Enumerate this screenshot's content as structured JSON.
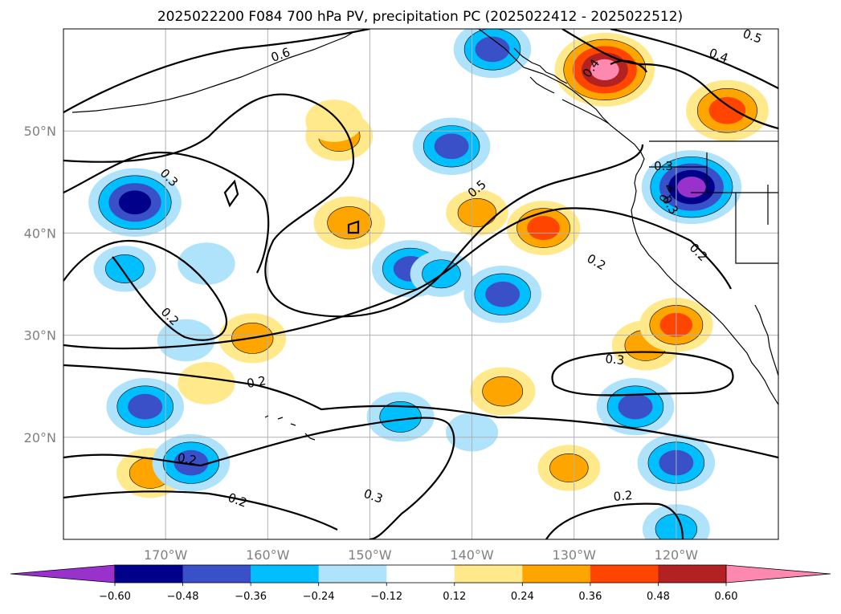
{
  "chart_data": {
    "type": "heatmap",
    "title": "2025022200 F084 700 hPa PV, precipitation PC (2025022412 - 2025022512)",
    "map": {
      "lon_range": [
        -180,
        -110
      ],
      "lat_range": [
        10,
        60
      ],
      "lon_ticks": [
        {
          "value": -170,
          "label": "170°W"
        },
        {
          "value": -160,
          "label": "160°W"
        },
        {
          "value": -150,
          "label": "150°W"
        },
        {
          "value": -140,
          "label": "140°W"
        },
        {
          "value": -130,
          "label": "130°W"
        },
        {
          "value": -120,
          "label": "120°W"
        }
      ],
      "lat_ticks": [
        {
          "value": 50,
          "label": "50°N"
        },
        {
          "value": 40,
          "label": "40°N"
        },
        {
          "value": 30,
          "label": "30°N"
        },
        {
          "value": 20,
          "label": "20°N"
        }
      ],
      "grid": true
    },
    "colorbar": {
      "orientation": "horizontal",
      "extend": "both",
      "levels": [
        -0.6,
        -0.48,
        -0.36,
        -0.24,
        -0.12,
        0.12,
        0.24,
        0.36,
        0.48,
        0.6
      ],
      "tick_labels": [
        "−0.60",
        "−0.48",
        "−0.36",
        "−0.24",
        "−0.12",
        "0.12",
        "0.24",
        "0.36",
        "0.48",
        "0.60"
      ],
      "colors": [
        "#9932cc",
        "#00008b",
        "#3a50c8",
        "#00bfff",
        "#aee3fb",
        "#ffffff",
        "#ffe98a",
        "#ffa500",
        "#ff4500",
        "#b22222",
        "#ff88b0"
      ]
    },
    "precipitation_pc_areas": [
      {
        "lon": -173,
        "lat": 43,
        "peak": -0.55
      },
      {
        "lon": -172,
        "lat": 23,
        "peak": -0.4
      },
      {
        "lon": -168,
        "lat": 29.5,
        "peak": -0.2
      },
      {
        "lon": -174,
        "lat": 36.5,
        "peak": -0.25
      },
      {
        "lon": -166,
        "lat": 37,
        "peak": -0.2
      },
      {
        "lon": -152,
        "lat": 41,
        "peak": 0.34
      },
      {
        "lon": -153,
        "lat": 49.5,
        "peak": 0.3
      },
      {
        "lon": -161.5,
        "lat": 29.7,
        "peak": 0.3
      },
      {
        "lon": -146,
        "lat": 36.5,
        "peak": -0.4
      },
      {
        "lon": -143,
        "lat": 36,
        "peak": -0.25
      },
      {
        "lon": -142,
        "lat": 48.5,
        "peak": -0.4
      },
      {
        "lon": -137,
        "lat": 34,
        "peak": -0.4
      },
      {
        "lon": -139.5,
        "lat": 42,
        "peak": 0.25
      },
      {
        "lon": -133,
        "lat": 40.5,
        "peak": 0.36
      },
      {
        "lon": -138,
        "lat": 58,
        "peak": -0.4
      },
      {
        "lon": -127,
        "lat": 56,
        "peak": 0.62
      },
      {
        "lon": -115,
        "lat": 52,
        "peak": 0.45
      },
      {
        "lon": -118.5,
        "lat": 44.5,
        "peak": -0.62
      },
      {
        "lon": -123,
        "lat": 29,
        "peak": 0.3
      },
      {
        "lon": -120,
        "lat": 31,
        "peak": 0.36
      },
      {
        "lon": -124,
        "lat": 23,
        "peak": -0.4
      },
      {
        "lon": -120,
        "lat": 17.5,
        "peak": -0.4
      },
      {
        "lon": -147,
        "lat": 22,
        "peak": -0.3
      },
      {
        "lon": -171.5,
        "lat": 16.5,
        "peak": 0.3
      },
      {
        "lon": -167.5,
        "lat": 17.5,
        "peak": -0.4
      },
      {
        "lon": -140,
        "lat": 20.5,
        "peak": -0.15
      },
      {
        "lon": -130.5,
        "lat": 17,
        "peak": 0.25
      },
      {
        "lon": -137,
        "lat": 24.5,
        "peak": 0.28
      },
      {
        "lon": -120,
        "lat": 11,
        "peak": -0.3
      },
      {
        "lon": -166,
        "lat": 25.3,
        "peak": 0.2
      },
      {
        "lon": -153.5,
        "lat": 51,
        "peak": 0.2
      }
    ],
    "pv_contour_labels": [
      "0.6",
      "0.5",
      "0.5",
      "0.4",
      "0.4",
      "0.3",
      "0.3",
      "0.3",
      "0.3",
      "0.3",
      "0.2",
      "0.2",
      "0.2",
      "0.2",
      "0.2",
      "0.2",
      "0.2",
      "0.4"
    ]
  }
}
